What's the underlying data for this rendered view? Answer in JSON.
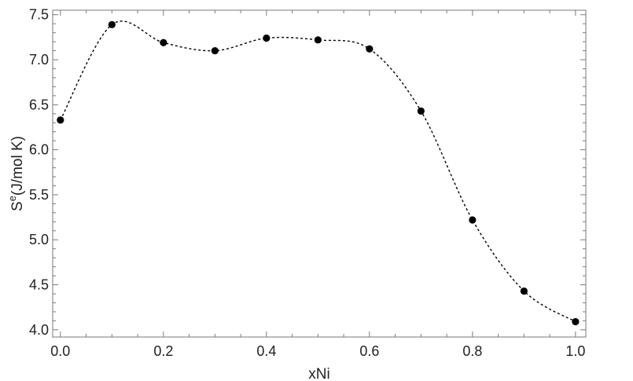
{
  "chart_data": {
    "type": "scatter",
    "title": "",
    "xlabel": "xNi",
    "ylabel": {
      "base": "S",
      "superscript": "e",
      "rest": "(J/mol K)"
    },
    "xlim": [
      -0.015,
      1.02
    ],
    "ylim": [
      3.92,
      7.55
    ],
    "x_ticks": [
      "0.0",
      "0.2",
      "0.4",
      "0.6",
      "0.8",
      "1.0"
    ],
    "y_ticks": [
      "4.0",
      "4.5",
      "5.0",
      "5.5",
      "6.0",
      "6.5",
      "7.0",
      "7.5"
    ],
    "grid": false,
    "frame": true,
    "series": [
      {
        "x": [
          0.0,
          0.1,
          0.2,
          0.3,
          0.4,
          0.5,
          0.6,
          0.7,
          0.8,
          0.9,
          1.0
        ],
        "y": [
          6.33,
          7.39,
          7.19,
          7.1,
          7.24,
          7.22,
          7.12,
          6.43,
          5.22,
          4.43,
          4.09
        ],
        "marker": "filled-circle",
        "line": "dashed-smooth",
        "color": "#000000"
      }
    ]
  }
}
